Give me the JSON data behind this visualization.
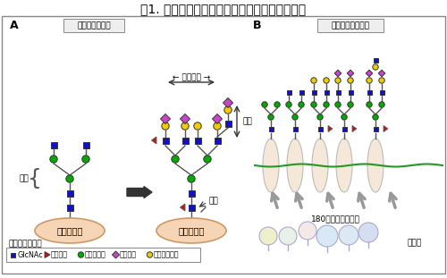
{
  "title": "図1. タンパク質に付いた糖鎖のバリエーション",
  "title_fontsize": 10.5,
  "bg_color": "#ffffff",
  "border_color": "#888888",
  "label_A": "A",
  "label_B": "B",
  "box_label_left": "糖鎖の形の一例",
  "box_label_right": "糖鎖の形の多様性",
  "protein_label": "タンパク質",
  "glycan_label": "糖鎖",
  "branch_label": "← 枝分かれ →",
  "elongation_label": "伸長",
  "modification_label": "修飾",
  "enzyme_label": "180種の糖転移酵素",
  "cytoplasm_label": "細胞内",
  "legend_title": "糖の種類と記号",
  "legend_items": [
    {
      "shape": "square",
      "color": "#1111cc",
      "label": "GlcNAc"
    },
    {
      "shape": "triangle",
      "color": "#cc1111",
      "label": "フコース"
    },
    {
      "shape": "circle",
      "color": "#00aa00",
      "label": "マンノース"
    },
    {
      "shape": "diamond",
      "color": "#cc44cc",
      "label": "シアル酸"
    },
    {
      "shape": "circle",
      "color": "#eecc00",
      "label": "ガラクトース"
    }
  ],
  "colors": {
    "blue": "#1111cc",
    "red": "#cc1111",
    "green": "#00aa00",
    "mag": "#cc44cc",
    "yellow": "#eecc00",
    "prot_fill": "#f5d5b5",
    "prot_edge": "#cc9966",
    "dark": "#333333",
    "mem_green": "#229922",
    "mem_fill": "#f5e8d8",
    "gray_arrow": "#888888",
    "box_bg": "#eeeeee"
  }
}
